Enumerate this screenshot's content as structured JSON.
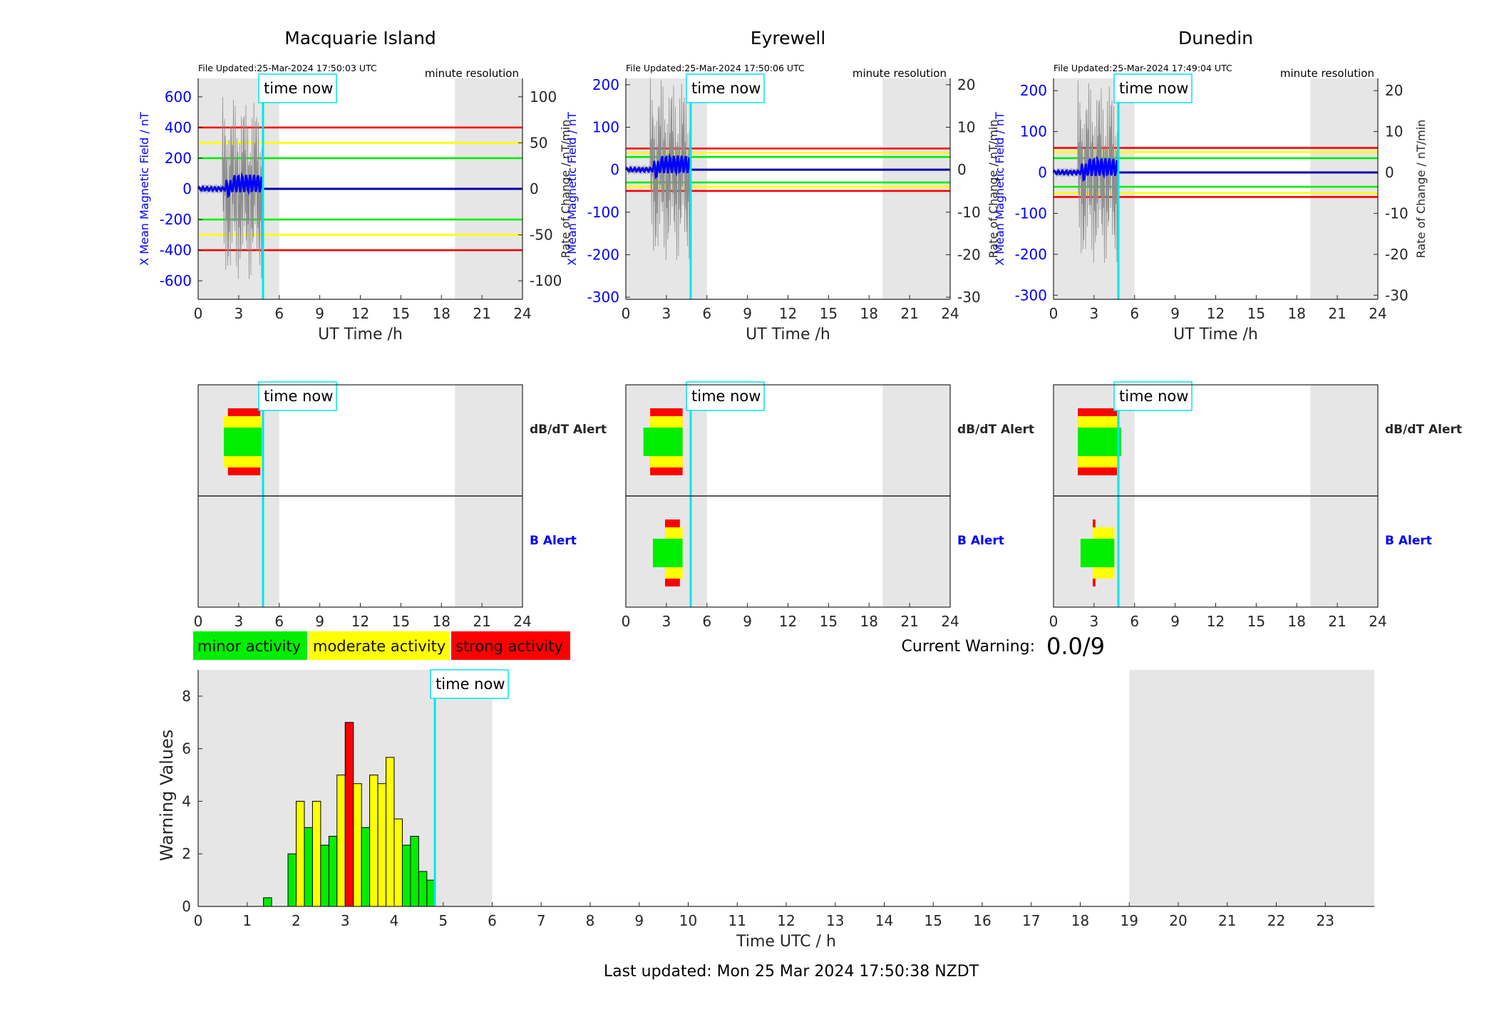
{
  "time_now_label": "time now",
  "resolution_label": "minute resolution",
  "current_warning": {
    "label": "Current Warning:",
    "value": "0.0/9"
  },
  "footer": "Last updated: Mon 25 Mar 2024 17:50:38 NZDT",
  "legend": [
    {
      "label": "minor activity",
      "color": "#00ee00"
    },
    {
      "label": "moderate activity",
      "color": "#ffff00"
    },
    {
      "label": "strong activity",
      "color": "#ff0000"
    }
  ],
  "colors": {
    "shade": "#e6e6e6",
    "time_now": "#00e5ee",
    "field": "#0000ff",
    "red": "#ff0000",
    "yellow": "#ffff00",
    "green": "#00ee00"
  },
  "chart_data": [
    {
      "type": "line",
      "title": "Macquarie Island",
      "file_updated": "File Updated:25-Mar-2024 17:50:03 UTC",
      "xlabel": "UT Time /h",
      "ylabel": "X Mean Magnetic Field / nT",
      "ylabel_right": "Rate of Change / nT/min",
      "xlim": [
        0,
        24
      ],
      "xticks": [
        0,
        3,
        6,
        9,
        12,
        15,
        18,
        21,
        24
      ],
      "ylim": [
        -720,
        720
      ],
      "yticks": [
        -600,
        -400,
        -200,
        0,
        200,
        400,
        600
      ],
      "ylim_right": [
        -120,
        120
      ],
      "yticks_right": [
        -100,
        -50,
        0,
        50,
        100
      ],
      "thresholds": {
        "green": 200,
        "yellow": 300,
        "red": 400
      },
      "time_now": 4.8,
      "shaded_ranges": [
        [
          0,
          6
        ],
        [
          19,
          24
        ]
      ]
    },
    {
      "type": "line",
      "title": "Eyrewell",
      "file_updated": "File Updated:25-Mar-2024 17:50:06 UTC",
      "xlabel": "UT Time /h",
      "ylabel": "X Mean Magnetic Field / nT",
      "ylabel_right": "Rate of Change / nT/min",
      "xlim": [
        0,
        24
      ],
      "xticks": [
        0,
        3,
        6,
        9,
        12,
        15,
        18,
        21,
        24
      ],
      "ylim": [
        -305,
        215
      ],
      "yticks": [
        -300,
        -200,
        -100,
        0,
        100,
        200
      ],
      "ylim_right": [
        -30.5,
        21.5
      ],
      "yticks_right": [
        -30,
        -20,
        -10,
        0,
        10,
        20
      ],
      "thresholds": {
        "green": 30,
        "yellow": 40,
        "red": 50
      },
      "time_now": 4.8,
      "shaded_ranges": [
        [
          0,
          6
        ],
        [
          19,
          24
        ]
      ]
    },
    {
      "type": "line",
      "title": "Dunedin",
      "file_updated": "File Updated:25-Mar-2024 17:49:04 UTC",
      "xlabel": "UT Time /h",
      "ylabel": "X Mean Magnetic Field / nT",
      "ylabel_right": "Rate of Change / nT/min",
      "xlim": [
        0,
        24
      ],
      "xticks": [
        0,
        3,
        6,
        9,
        12,
        15,
        18,
        21,
        24
      ],
      "ylim": [
        -310,
        230
      ],
      "yticks": [
        -300,
        -200,
        -100,
        0,
        100,
        200
      ],
      "ylim_right": [
        -31,
        23
      ],
      "yticks_right": [
        -30,
        -20,
        -10,
        0,
        10,
        20
      ],
      "thresholds": {
        "green": 35,
        "yellow": 50,
        "red": 60
      },
      "time_now": 4.8,
      "shaded_ranges": [
        [
          0,
          6
        ],
        [
          19,
          24
        ]
      ]
    },
    {
      "type": "bar",
      "name": "alerts",
      "rows": [
        "dB/dT Alert",
        "B Alert"
      ],
      "xlim": [
        0,
        24
      ],
      "xticks": [
        0,
        3,
        6,
        9,
        12,
        15,
        18,
        21,
        24
      ],
      "stations": [
        {
          "station": "Macquarie Island",
          "time_now": 4.8,
          "dbdt": [
            {
              "level": "red",
              "x0": 2.2,
              "x1": 4.6
            },
            {
              "level": "yellow",
              "x0": 1.9,
              "x1": 4.7
            },
            {
              "level": "green",
              "x0": 1.9,
              "x1": 4.7
            }
          ],
          "b": []
        },
        {
          "station": "Eyrewell",
          "time_now": 4.8,
          "dbdt": [
            {
              "level": "red",
              "x0": 1.8,
              "x1": 4.2
            },
            {
              "level": "yellow",
              "x0": 1.8,
              "x1": 4.2
            },
            {
              "level": "green",
              "x0": 1.3,
              "x1": 4.2
            }
          ],
          "b": [
            {
              "level": "red",
              "x0": 2.9,
              "x1": 4.0
            },
            {
              "level": "yellow",
              "x0": 2.9,
              "x1": 4.2
            },
            {
              "level": "green",
              "x0": 2.0,
              "x1": 4.2
            }
          ]
        },
        {
          "station": "Dunedin",
          "time_now": 4.8,
          "dbdt": [
            {
              "level": "red",
              "x0": 1.8,
              "x1": 4.7
            },
            {
              "level": "yellow",
              "x0": 1.8,
              "x1": 4.7
            },
            {
              "level": "green",
              "x0": 1.8,
              "x1": 5.0
            }
          ],
          "b": [
            {
              "level": "red",
              "x0": 2.9,
              "x1": 3.1
            },
            {
              "level": "yellow",
              "x0": 2.9,
              "x1": 4.5
            },
            {
              "level": "green",
              "x0": 2.0,
              "x1": 4.5
            }
          ]
        }
      ]
    },
    {
      "type": "bar",
      "name": "warning_values",
      "xlabel": "Time UTC / h",
      "ylabel": "Warning Values",
      "xlim": [
        0,
        24
      ],
      "xticks": [
        0,
        1,
        2,
        3,
        4,
        5,
        6,
        7,
        8,
        9,
        10,
        11,
        12,
        13,
        14,
        15,
        16,
        17,
        18,
        19,
        20,
        21,
        22,
        23
      ],
      "ylim": [
        0,
        9
      ],
      "yticks": [
        0,
        2,
        4,
        6,
        8
      ],
      "time_now": 4.83,
      "shaded_ranges": [
        [
          0,
          6
        ],
        [
          19,
          24
        ]
      ],
      "bar_width_h": 0.1667,
      "bars": [
        {
          "x": 1.333,
          "value": 0.33,
          "level": "green"
        },
        {
          "x": 1.833,
          "value": 2.0,
          "level": "green"
        },
        {
          "x": 2.0,
          "value": 4.0,
          "level": "yellow"
        },
        {
          "x": 2.167,
          "value": 3.0,
          "level": "green"
        },
        {
          "x": 2.333,
          "value": 4.0,
          "level": "yellow"
        },
        {
          "x": 2.5,
          "value": 2.33,
          "level": "green"
        },
        {
          "x": 2.667,
          "value": 2.67,
          "level": "green"
        },
        {
          "x": 2.833,
          "value": 5.0,
          "level": "yellow"
        },
        {
          "x": 3.0,
          "value": 7.0,
          "level": "red"
        },
        {
          "x": 3.167,
          "value": 4.67,
          "level": "yellow"
        },
        {
          "x": 3.333,
          "value": 3.0,
          "level": "green"
        },
        {
          "x": 3.5,
          "value": 5.0,
          "level": "yellow"
        },
        {
          "x": 3.667,
          "value": 4.67,
          "level": "yellow"
        },
        {
          "x": 3.833,
          "value": 5.67,
          "level": "yellow"
        },
        {
          "x": 4.0,
          "value": 3.33,
          "level": "yellow"
        },
        {
          "x": 4.167,
          "value": 2.33,
          "level": "green"
        },
        {
          "x": 4.333,
          "value": 2.67,
          "level": "green"
        },
        {
          "x": 4.5,
          "value": 1.33,
          "level": "green"
        },
        {
          "x": 4.667,
          "value": 1.0,
          "level": "green"
        }
      ]
    }
  ]
}
